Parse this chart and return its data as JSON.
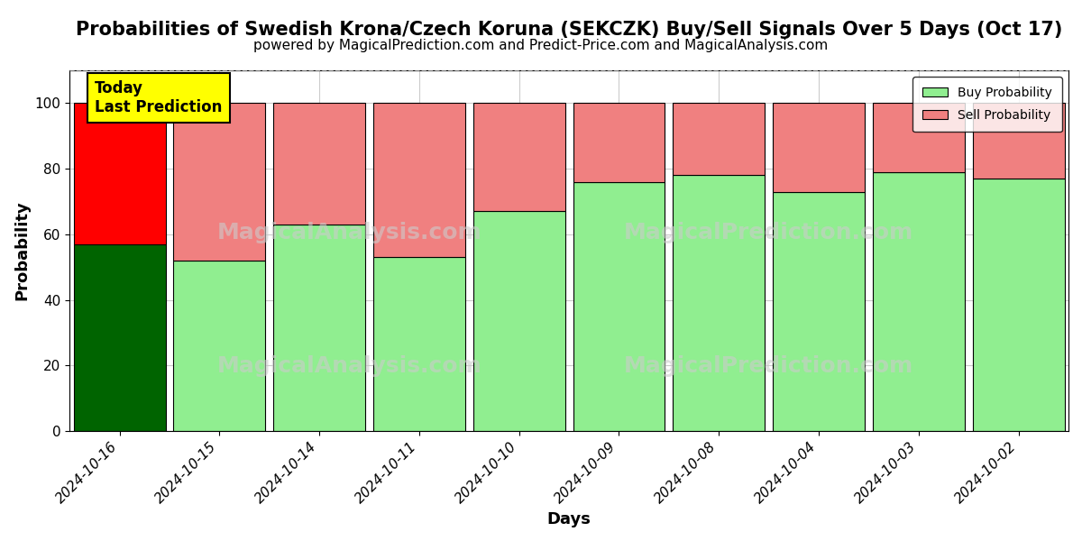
{
  "title": "Probabilities of Swedish Krona/Czech Koruna (SEKCZK) Buy/Sell Signals Over 5 Days (Oct 17)",
  "subtitle": "powered by MagicalPrediction.com and Predict-Price.com and MagicalAnalysis.com",
  "xlabel": "Days",
  "ylabel": "Probability",
  "categories": [
    "2024-10-16",
    "2024-10-15",
    "2024-10-14",
    "2024-10-11",
    "2024-10-10",
    "2024-10-09",
    "2024-10-08",
    "2024-10-04",
    "2024-10-03",
    "2024-10-02"
  ],
  "buy_values": [
    57,
    52,
    63,
    53,
    67,
    76,
    78,
    73,
    79,
    77
  ],
  "sell_values": [
    43,
    48,
    37,
    47,
    33,
    24,
    22,
    27,
    21,
    23
  ],
  "today_bar_buy_color": "#006400",
  "today_bar_sell_color": "#FF0000",
  "other_bar_buy_color": "#90EE90",
  "other_bar_sell_color": "#F08080",
  "bar_edge_color": "#000000",
  "today_label": "Today\nLast Prediction",
  "today_label_bg": "#FFFF00",
  "legend_buy_label": "Buy Probability",
  "legend_sell_label": "Sell Probability",
  "ylim": [
    0,
    110
  ],
  "yticks": [
    0,
    20,
    40,
    60,
    80,
    100
  ],
  "dashed_line_y": 110,
  "background_color": "#ffffff",
  "grid_color": "#cccccc",
  "title_fontsize": 15,
  "subtitle_fontsize": 11,
  "axis_label_fontsize": 13,
  "tick_fontsize": 11,
  "watermark_color": "#cccccc"
}
